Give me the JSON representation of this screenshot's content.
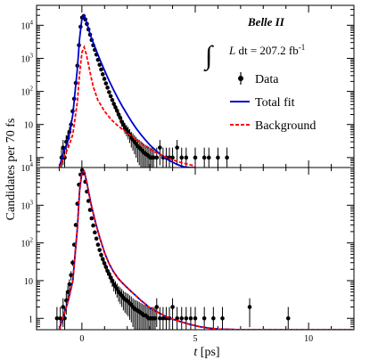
{
  "experiment": "Belle II",
  "luminosity": {
    "integral_sign": "∫",
    "var": "L",
    "rest": " dt = 207.2 fb",
    "exponent": "-1"
  },
  "chart_data": [
    {
      "type": "line",
      "panel": "top",
      "ylabel": "Candidates per 70 fs",
      "yscale": "log",
      "ylim": [
        0.5,
        40000
      ],
      "xlim": [
        -2,
        12
      ],
      "xticks": [
        "0",
        "5",
        "10"
      ],
      "yticks": [
        "1",
        "10",
        "10^2",
        "10^3",
        "10^4"
      ],
      "legend": {
        "placement": "upper-right",
        "entries": [
          "Data",
          "Total fit",
          "Background"
        ]
      },
      "series": [
        {
          "name": "Data",
          "style": "points-with-error-bars",
          "color": "#000000",
          "x": [
            -0.9,
            -0.83,
            -0.76,
            -0.69,
            -0.62,
            -0.55,
            -0.48,
            -0.41,
            -0.34,
            -0.27,
            -0.2,
            -0.13,
            -0.06,
            0.01,
            0.08,
            0.15,
            0.22,
            0.29,
            0.36,
            0.43,
            0.5,
            0.57,
            0.64,
            0.71,
            0.78,
            0.85,
            0.92,
            0.99,
            1.06,
            1.13,
            1.2,
            1.27,
            1.34,
            1.41,
            1.48,
            1.55,
            1.62,
            1.69,
            1.76,
            1.83,
            1.9,
            1.97,
            2.04,
            2.11,
            2.18,
            2.25,
            2.32,
            2.39,
            2.46,
            2.53,
            2.6,
            2.67,
            2.74,
            2.81,
            2.88,
            2.95,
            3.02,
            3.09,
            3.16,
            3.3,
            3.44,
            3.58,
            3.72,
            3.86,
            4.0,
            4.2,
            4.4,
            4.6,
            5.0,
            5.4,
            5.6,
            6.0,
            6.4
          ],
          "y": [
            1,
            2,
            1,
            3,
            4,
            6,
            10,
            25,
            60,
            180,
            600,
            2500,
            9000,
            17000,
            19000,
            15000,
            11000,
            7500,
            5200,
            3600,
            2500,
            1800,
            1300,
            900,
            640,
            460,
            330,
            240,
            175,
            130,
            95,
            72,
            55,
            42,
            33,
            26,
            20,
            16,
            12,
            10,
            8,
            7,
            6,
            5,
            4,
            3.5,
            3,
            2.6,
            2.2,
            2,
            1.8,
            1.6,
            1.4,
            1.3,
            1.2,
            1.1,
            1,
            1,
            1,
            1,
            2,
            1,
            1,
            1,
            1,
            2,
            1,
            1,
            1,
            1,
            1,
            1,
            1
          ]
        },
        {
          "name": "Total fit",
          "style": "line",
          "color": "#0000cc",
          "x": [
            -1,
            -0.8,
            -0.6,
            -0.4,
            -0.2,
            -0.1,
            0,
            0.1,
            0.2,
            0.3,
            0.4,
            0.6,
            0.8,
            1,
            1.2,
            1.4,
            1.6,
            1.8,
            2,
            2.2,
            2.4,
            2.6,
            2.8,
            3,
            3.2,
            3.4,
            3.6,
            3.8,
            4,
            4.2,
            4.4,
            4.6,
            4.8,
            5
          ],
          "y": [
            0.5,
            1.5,
            3.5,
            20,
            500,
            4000,
            16000,
            20000,
            13000,
            7500,
            4500,
            2000,
            900,
            430,
            210,
            110,
            60,
            34,
            20,
            12,
            7.5,
            5,
            3.4,
            2.4,
            1.8,
            1.35,
            1.05,
            0.85,
            0.72,
            0.62,
            0.55,
            0.51,
            0.48,
            0.45
          ]
        },
        {
          "name": "Background",
          "style": "dashed-line",
          "color": "#ff0000",
          "x": [
            -1,
            -0.8,
            -0.6,
            -0.4,
            -0.2,
            -0.1,
            0,
            0.1,
            0.2,
            0.3,
            0.4,
            0.5,
            0.7,
            1,
            1.3,
            1.6,
            2,
            2.4,
            2.8,
            3.2,
            3.6,
            4,
            4.4,
            4.8,
            5
          ],
          "y": [
            0.5,
            1,
            2,
            5,
            50,
            350,
            1500,
            2200,
            1300,
            600,
            280,
            140,
            55,
            25,
            14,
            9,
            5.5,
            3.5,
            2.2,
            1.5,
            1.1,
            0.85,
            0.7,
            0.6,
            0.55
          ]
        }
      ]
    },
    {
      "type": "line",
      "panel": "bottom",
      "xlabel": "t [ps]",
      "ylabel": "Candidates per 70 fs",
      "yscale": "log",
      "ylim": [
        0.5,
        10000
      ],
      "xlim": [
        -2,
        12
      ],
      "xticks": [
        "0",
        "5",
        "10"
      ],
      "yticks": [
        "1",
        "10",
        "10^2",
        "10^3",
        "10^4"
      ],
      "series": [
        {
          "name": "Data",
          "style": "points-with-error-bars",
          "color": "#000000",
          "x": [
            -1.1,
            -0.95,
            -0.83,
            -0.76,
            -0.69,
            -0.62,
            -0.55,
            -0.48,
            -0.41,
            -0.34,
            -0.27,
            -0.2,
            -0.13,
            -0.06,
            0.01,
            0.08,
            0.15,
            0.22,
            0.29,
            0.36,
            0.43,
            0.5,
            0.57,
            0.64,
            0.71,
            0.78,
            0.85,
            0.92,
            0.99,
            1.06,
            1.13,
            1.2,
            1.27,
            1.34,
            1.41,
            1.48,
            1.55,
            1.62,
            1.69,
            1.76,
            1.83,
            1.9,
            1.97,
            2.04,
            2.11,
            2.18,
            2.25,
            2.32,
            2.39,
            2.46,
            2.53,
            2.6,
            2.67,
            2.74,
            2.81,
            2.88,
            2.95,
            3.02,
            3.09,
            3.16,
            3.23,
            3.3,
            3.44,
            3.58,
            3.72,
            3.86,
            4.0,
            4.2,
            4.4,
            4.6,
            4.8,
            5.0,
            5.4,
            5.8,
            6.2,
            7.4,
            9.1
          ],
          "y": [
            1,
            1,
            2,
            1,
            3,
            5,
            8,
            14,
            30,
            90,
            300,
            1100,
            3500,
            6500,
            8500,
            7000,
            4200,
            2300,
            1300,
            750,
            450,
            290,
            190,
            130,
            90,
            65,
            48,
            37,
            29,
            23,
            18,
            15,
            12,
            10,
            8,
            7,
            6,
            5,
            4.5,
            4,
            3.5,
            3.2,
            3,
            2.8,
            2.5,
            2.3,
            2,
            1.8,
            1.7,
            1.6,
            1.5,
            1.4,
            1.3,
            1.2,
            1.2,
            1.1,
            1,
            1,
            1,
            1,
            1,
            2,
            1,
            1,
            1,
            1,
            2,
            1,
            1,
            1,
            1,
            1,
            1,
            1,
            1,
            2,
            1
          ]
        },
        {
          "name": "Total fit",
          "style": "line",
          "color": "#0000cc",
          "x": [
            -1,
            -0.8,
            -0.6,
            -0.4,
            -0.2,
            -0.1,
            0,
            0.1,
            0.2,
            0.3,
            0.4,
            0.6,
            0.8,
            1,
            1.2,
            1.4,
            1.6,
            1.8,
            2,
            2.2,
            2.4,
            2.6,
            2.8,
            3,
            3.3,
            3.6,
            4,
            4.4,
            4.8,
            5.2,
            5.6,
            6,
            7,
            8,
            9,
            10,
            11,
            12
          ],
          "y": [
            0.5,
            1.2,
            3,
            10,
            250,
            2500,
            7500,
            8000,
            4500,
            2200,
            1100,
            350,
            130,
            55,
            28,
            17,
            11.5,
            8.5,
            6.5,
            5,
            3.9,
            3,
            2.4,
            1.9,
            1.5,
            1.2,
            0.95,
            0.8,
            0.68,
            0.6,
            0.55,
            0.52,
            0.5,
            0.5,
            0.5,
            0.5,
            0.5,
            0.5
          ]
        },
        {
          "name": "Background",
          "style": "dashed-line",
          "color": "#ff0000",
          "x": [
            -1,
            -0.8,
            -0.6,
            -0.4,
            -0.2,
            -0.1,
            0,
            0.1,
            0.2,
            0.3,
            0.4,
            0.6,
            0.8,
            1,
            1.2,
            1.4,
            1.6,
            1.8,
            2,
            2.2,
            2.4,
            2.6,
            2.8,
            3,
            3.3,
            3.6,
            4,
            4.4,
            4.8,
            5.2,
            5.6,
            6,
            7,
            8,
            9,
            10,
            11,
            12
          ],
          "y": [
            0.5,
            1.2,
            3,
            10,
            250,
            2500,
            7500,
            8000,
            4500,
            2200,
            1100,
            350,
            130,
            55,
            28,
            17,
            11.5,
            8.5,
            6.5,
            5,
            3.9,
            3,
            2.4,
            1.9,
            1.5,
            1.2,
            0.95,
            0.8,
            0.68,
            0.6,
            0.55,
            0.52,
            0.5,
            0.5,
            0.5,
            0.5,
            0.5,
            0.5
          ]
        }
      ]
    }
  ]
}
